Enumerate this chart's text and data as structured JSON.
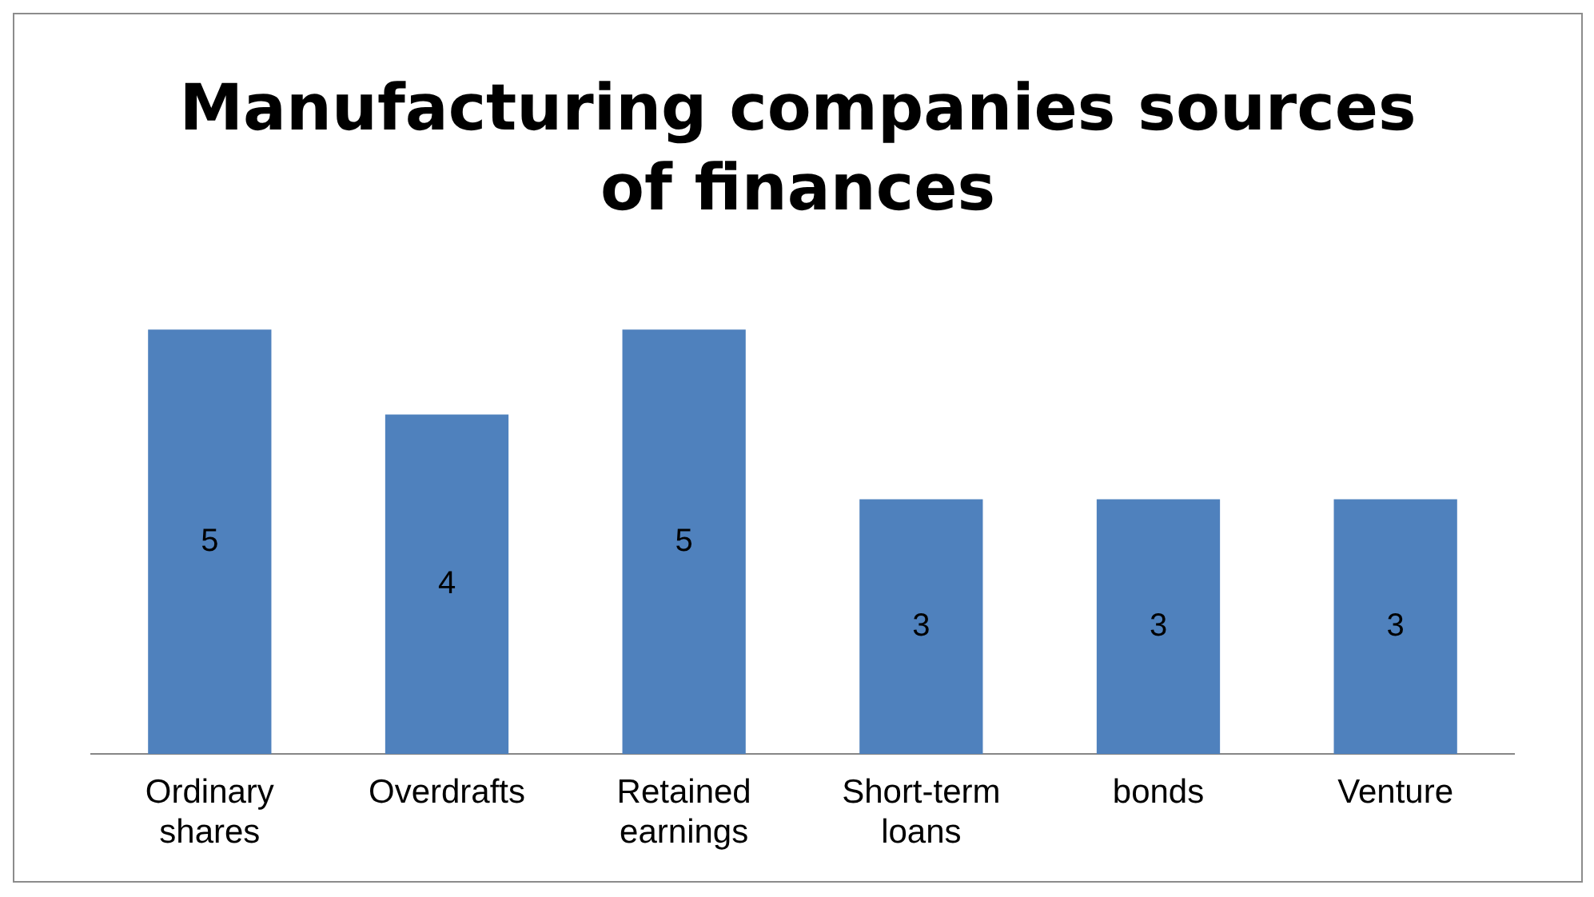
{
  "chart_data": {
    "type": "bar",
    "title": "Manufacturing companies sources of finances",
    "categories": [
      "Ordinary shares",
      "Overdrafts",
      "Retained earnings",
      "Short-term loans",
      "bonds",
      "Venture"
    ],
    "values": [
      5,
      4,
      5,
      3,
      3,
      3
    ],
    "color": "#4f81bd",
    "relative": false,
    "data_labels": true,
    "grid": false,
    "legend": false
  }
}
